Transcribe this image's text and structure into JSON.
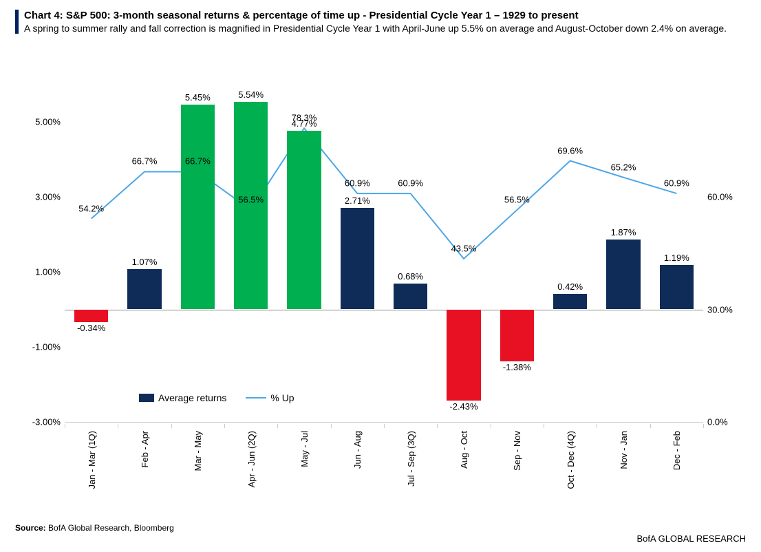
{
  "header": {
    "title": "Chart 4: S&P 500: 3-month seasonal returns & percentage of time up - Presidential Cycle Year 1 – 1929 to present",
    "subtitle": "A spring to summer rally and fall correction is magnified in Presidential Cycle Year 1 with April-June up 5.5% on average and August-October down 2.4% on average.",
    "accent_color": "#002060",
    "title_fontsize": 15,
    "subtitle_fontsize": 14
  },
  "chart": {
    "type": "bar+line",
    "background_color": "#ffffff",
    "categories": [
      "Jan - Mar (1Q)",
      "Feb - Apr",
      "Mar - May",
      "Apr - Jun (2Q)",
      "May - Jul",
      "Jun - Aug",
      "Jul - Sep (3Q)",
      "Aug - Oct",
      "Sep - Nov",
      "Oct - Dec (4Q)",
      "Nov - Jan",
      "Dec - Feb"
    ],
    "bars": {
      "label": "Average returns",
      "values": [
        -0.34,
        1.07,
        5.45,
        5.54,
        4.77,
        2.71,
        0.68,
        -2.43,
        -1.38,
        0.42,
        1.87,
        1.19
      ],
      "value_labels": [
        "-0.34%",
        "1.07%",
        "5.45%",
        "5.54%",
        "4.77%",
        "2.71%",
        "0.68%",
        "-2.43%",
        "-1.38%",
        "0.42%",
        "1.87%",
        "1.19%"
      ],
      "colors": [
        "#e81123",
        "#0f2c59",
        "#00b050",
        "#00b050",
        "#00b050",
        "#0f2c59",
        "#0f2c59",
        "#e81123",
        "#e81123",
        "#0f2c59",
        "#0f2c59",
        "#0f2c59"
      ],
      "legend_color": "#0f2c59",
      "bar_width_frac": 0.64,
      "axis": "left"
    },
    "line": {
      "label": "% Up",
      "values": [
        54.2,
        66.7,
        66.7,
        56.5,
        78.3,
        60.9,
        60.9,
        43.5,
        56.5,
        69.6,
        65.2,
        60.9
      ],
      "value_labels": [
        "54.2%",
        "66.7%",
        "66.7%",
        "56.5%",
        "78.3%",
        "60.9%",
        "60.9%",
        "43.5%",
        "56.5%",
        "69.6%",
        "65.2%",
        "60.9%"
      ],
      "color": "#4ba7e8",
      "line_width": 2,
      "marker": "none",
      "axis": "right"
    },
    "y_left": {
      "min": -3.0,
      "max": 7.0,
      "ticks": [
        -3.0,
        -1.0,
        1.0,
        3.0,
        5.0
      ],
      "tick_labels": [
        "-3.00%",
        "-1.00%",
        "1.00%",
        "3.00%",
        "5.00%"
      ],
      "fontsize": 13
    },
    "y_right": {
      "min": 0.0,
      "max": 100.0,
      "ticks": [
        0.0,
        30.0,
        60.0
      ],
      "tick_labels": [
        "0.0%",
        "30.0%",
        "60.0%"
      ],
      "fontsize": 13
    },
    "grid": false,
    "x_label_rotation": -90,
    "x_label_fontsize": 13
  },
  "legend": {
    "item1": "Average returns",
    "item2": "% Up"
  },
  "footer": {
    "source_label": "Source:",
    "source_text": "BofA Global Research, Bloomberg",
    "brand": "BofA GLOBAL RESEARCH"
  }
}
